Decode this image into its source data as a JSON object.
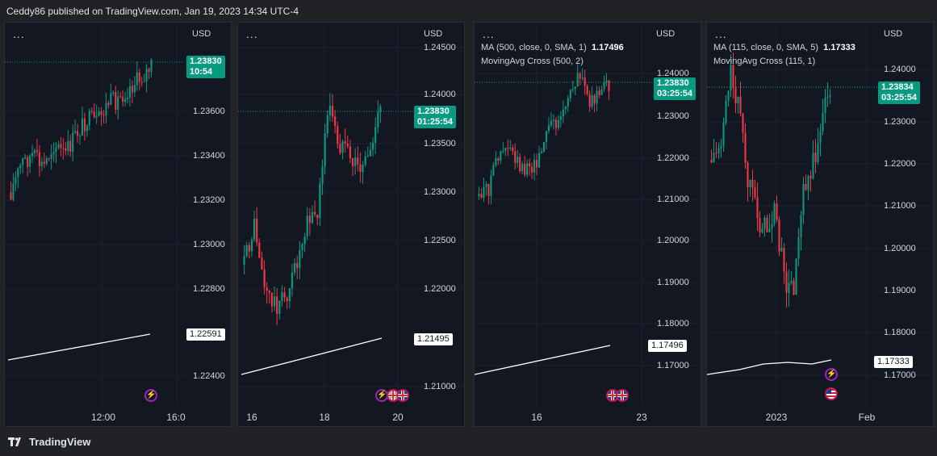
{
  "header": {
    "text": "Ceddy86 published on TradingView.com, Jan 19, 2023 14:34 UTC-4"
  },
  "footer": {
    "brand": "TradingView",
    "logo_icon": "tradingview-logo-icon"
  },
  "colors": {
    "bull": "#089981",
    "bear": "#f23645",
    "background": "#131722",
    "ma_line": "#ffffff"
  },
  "panels": [
    {
      "menu": "...",
      "currency": "USD",
      "legend": [],
      "y_ticks": [
        "1.23600",
        "1.23400",
        "1.23200",
        "1.23000",
        "1.22800",
        "1.22400"
      ],
      "x_ticks": [
        "12:00",
        "16:0"
      ],
      "price_label": {
        "price": "1.23830",
        "countdown": "10:54"
      },
      "ma_label": "1.22591",
      "icons": [
        "lightning-icon"
      ]
    },
    {
      "menu": "...",
      "currency": "USD",
      "legend": [],
      "y_ticks": [
        "1.24500",
        "1.24000",
        "1.23500",
        "1.23000",
        "1.22500",
        "1.22000",
        "1.21000"
      ],
      "x_ticks": [
        "16",
        "18",
        "20"
      ],
      "price_label": {
        "price": "1.23830",
        "countdown": "01:25:54"
      },
      "ma_label": "1.21495",
      "icons": [
        "lightning-icon",
        "uk-flag-icon"
      ]
    },
    {
      "menu": "...",
      "currency": "USD",
      "legend": [
        {
          "text": "MA (500, close, 0, SMA, 1)",
          "value": "1.17496"
        },
        {
          "text": "MovingAvg Cross (500, 2)",
          "value": ""
        }
      ],
      "y_ticks": [
        "1.24000",
        "1.23000",
        "1.22000",
        "1.21000",
        "1.20000",
        "1.19000",
        "1.18000",
        "1.17000"
      ],
      "x_ticks": [
        "16",
        "23"
      ],
      "price_label": {
        "price": "1.23830",
        "countdown": "03:25:54"
      },
      "ma_label": "1.17496",
      "icons": [
        "uk-flag-icon"
      ]
    },
    {
      "menu": "...",
      "currency": "USD",
      "legend": [
        {
          "text": "MA (115, close, 0, SMA, 5)",
          "value": "1.17333"
        },
        {
          "text": "MovingAvg Cross (115, 1)",
          "value": ""
        }
      ],
      "y_ticks": [
        "1.24000",
        "1.23000",
        "1.22000",
        "1.21000",
        "1.20000",
        "1.19000",
        "1.18000",
        "1.17000"
      ],
      "x_ticks": [
        "2023",
        "Feb"
      ],
      "price_label": {
        "price": "1.23834",
        "countdown": "03:25:54"
      },
      "ma_label": "1.17333",
      "icons": [
        "lightning-icon",
        "us-flag-icon"
      ]
    }
  ]
}
